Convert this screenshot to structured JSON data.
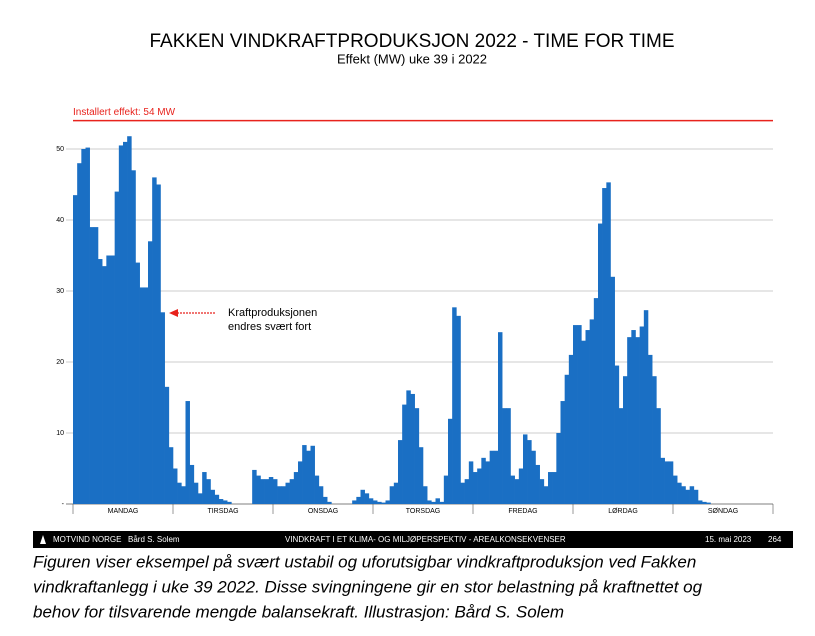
{
  "chart_data": {
    "type": "bar",
    "title": "FAKKEN VINDKRAFTPRODUKSJON 2022 - TIME FOR TIME",
    "subtitle": "Effekt (MW) uke 39 i 2022",
    "day_labels": [
      "MANDAG",
      "TIRSDAG",
      "ONSDAG",
      "TORSDAG",
      "FREDAG",
      "LØRDAG",
      "SØNDAG"
    ],
    "values": [
      43.5,
      48,
      50,
      50.2,
      39,
      39,
      34.5,
      33.5,
      35,
      35,
      44,
      50.5,
      51,
      51.8,
      47,
      34,
      30.5,
      30.5,
      37,
      46,
      45,
      27,
      16.5,
      8,
      5,
      3,
      2.5,
      14.5,
      5.5,
      3,
      1.5,
      4.5,
      3.5,
      2,
      1.3,
      0.7,
      0.5,
      0.3,
      0,
      0,
      0,
      0,
      0,
      4.8,
      4,
      3.5,
      3.5,
      3.8,
      3.5,
      2.5,
      2.5,
      3,
      3.5,
      4.5,
      6,
      8.3,
      7.5,
      8.2,
      4,
      2.5,
      1,
      0.3,
      0,
      0,
      0,
      0,
      0,
      0.5,
      1,
      2,
      1.5,
      0.8,
      0.5,
      0.3,
      0.2,
      0.5,
      2.5,
      3,
      9,
      14,
      16,
      15.5,
      13.5,
      8,
      2.5,
      0.5,
      0.3,
      0.8,
      0.3,
      4,
      12,
      27.7,
      26.5,
      3,
      3.5,
      6,
      4.5,
      5,
      6.5,
      6,
      7.5,
      7.5,
      24.2,
      13.5,
      13.5,
      4,
      3.5,
      5,
      9.8,
      9,
      7.5,
      5.5,
      3.5,
      2.5,
      4.5,
      4.5,
      10,
      14.5,
      18.2,
      21,
      25.2,
      25.2,
      23,
      24.5,
      26,
      29,
      39.5,
      44.5,
      45.3,
      32,
      19.5,
      13.5,
      18,
      23.5,
      24.5,
      23.5,
      25,
      27.3,
      21,
      18,
      13.5,
      6.5,
      6,
      6,
      4,
      3,
      2.5,
      2,
      2.5,
      2,
      0.5,
      0.3,
      0.2,
      0,
      0,
      0,
      0,
      0,
      0,
      0,
      0,
      0,
      0,
      0,
      0,
      0,
      0,
      0
    ],
    "color": "#1a6fc4",
    "ylim": [
      0,
      55
    ],
    "yticks": [
      {
        "value": 0,
        "label": "-"
      },
      10,
      20,
      30,
      40,
      50
    ],
    "grid": true,
    "reference_line": {
      "value": 54,
      "label": "Installert effekt: 54 MW",
      "color": "#e8231d"
    },
    "annotation": [
      "Kraftproduksjonen",
      "endres svært fort"
    ]
  },
  "footer": {
    "left": [
      "MOTVIND NORGE",
      "Bård S. Solem"
    ],
    "center": "VINDKRAFT I ET KLIMA- OG MILJØPERSPEKTIV  -  AREALKONSEKVENSER",
    "date": "15. mai 2023",
    "page": "264"
  },
  "caption": [
    "Figuren viser eksempel på svært ustabil og uforutsigbar vindkraftproduksjon ved Fakken",
    "vindkraftanlegg i uke 39 2022. Disse svingningene gir en stor belastning på kraftnettet og",
    "behov for tilsvarende mengde balansekraft. Illustrasjon: Bård S. Solem"
  ]
}
